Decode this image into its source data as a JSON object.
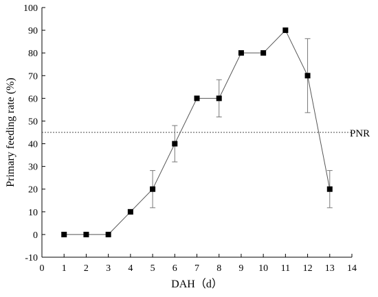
{
  "chart_data": {
    "type": "line",
    "xlabel": "DAH（d）",
    "ylabel": "Primary feeding rate (%)",
    "xlim": [
      0,
      14
    ],
    "ylim": [
      -10,
      100
    ],
    "xticks": [
      "0",
      "1",
      "2",
      "3",
      "4",
      "5",
      "6",
      "7",
      "8",
      "9",
      "10",
      "11",
      "12",
      "13",
      "14"
    ],
    "yticks": [
      "-10",
      "0",
      "10",
      "20",
      "30",
      "40",
      "50",
      "60",
      "70",
      "80",
      "90",
      "100"
    ],
    "series": [
      {
        "x": [
          1,
          2,
          3,
          4,
          5,
          6,
          7,
          8,
          9,
          10,
          11,
          12,
          13
        ],
        "y": [
          0,
          0,
          0,
          10,
          20,
          40,
          60,
          60,
          80,
          80,
          90,
          70,
          20
        ],
        "error": [
          0,
          0,
          0,
          0,
          8.2,
          8,
          0,
          8.2,
          0,
          0,
          0,
          16.3,
          8.2
        ]
      }
    ],
    "reference_line": {
      "y": 45,
      "label": "PNR",
      "style": "dashed"
    },
    "grid": false
  }
}
